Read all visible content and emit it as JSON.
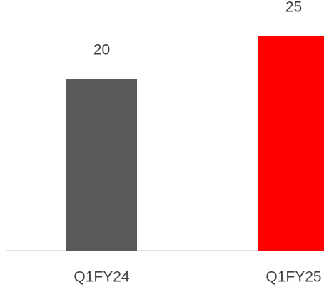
{
  "chart_data": {
    "type": "bar",
    "categories": [
      "Q1FY24",
      "Q1FY25"
    ],
    "values": [
      20,
      25
    ],
    "colors": [
      "#595959",
      "#ff0000"
    ]
  }
}
